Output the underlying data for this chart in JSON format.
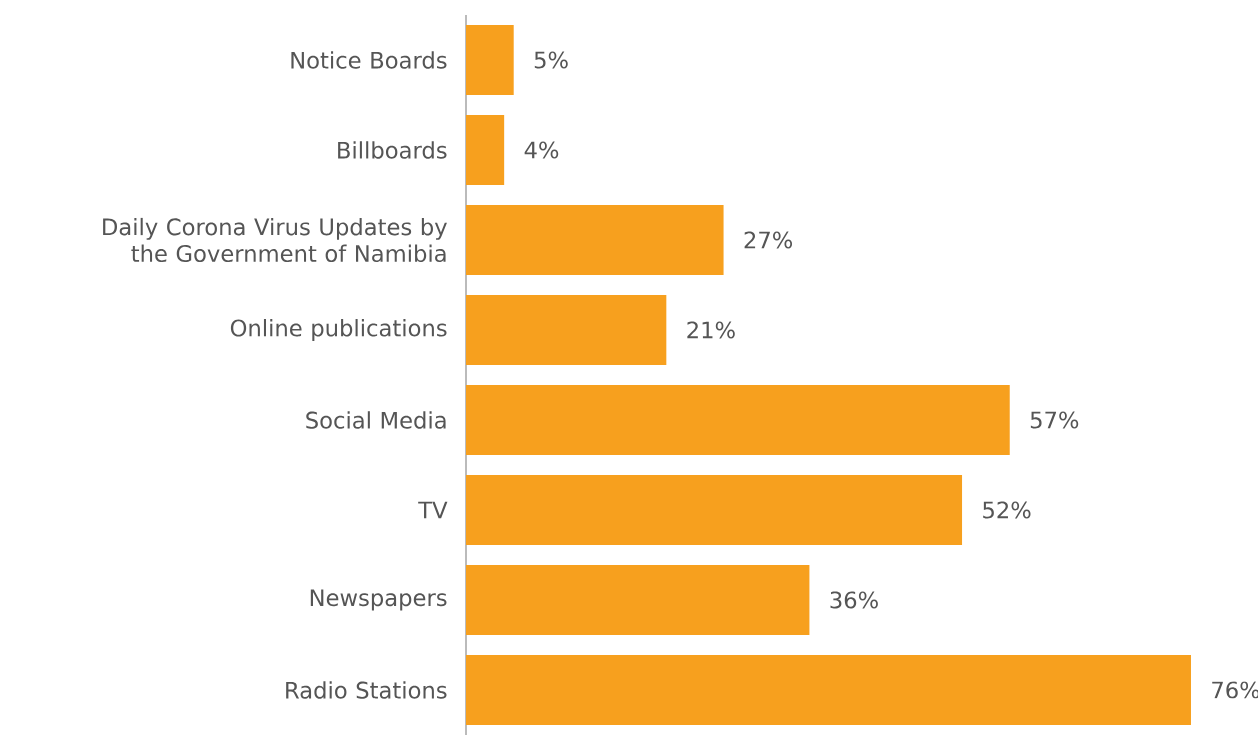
{
  "chart_data": {
    "type": "bar",
    "orientation": "horizontal",
    "categories": [
      "Notice Boards",
      "Billboards",
      "Daily Corona Virus Updates by the Government of Namibia",
      "Online publications",
      "Social Media",
      "TV",
      "Newspapers",
      "Radio Stations"
    ],
    "values": [
      5,
      4,
      27,
      21,
      57,
      52,
      36,
      76
    ],
    "value_labels": [
      "5%",
      "4%",
      "27%",
      "21%",
      "57%",
      "52%",
      "36%",
      "76%"
    ],
    "color": "#f7a01e"
  }
}
